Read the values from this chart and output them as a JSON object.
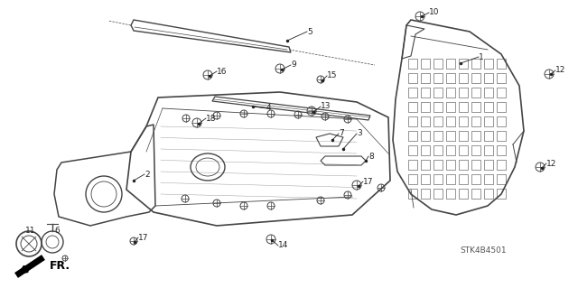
{
  "background_color": "#ffffff",
  "fig_width": 6.4,
  "fig_height": 3.19,
  "dpi": 100,
  "watermark": "STK4B4501",
  "line_color": "#444444",
  "text_color": "#222222",
  "font_size": 6.5
}
